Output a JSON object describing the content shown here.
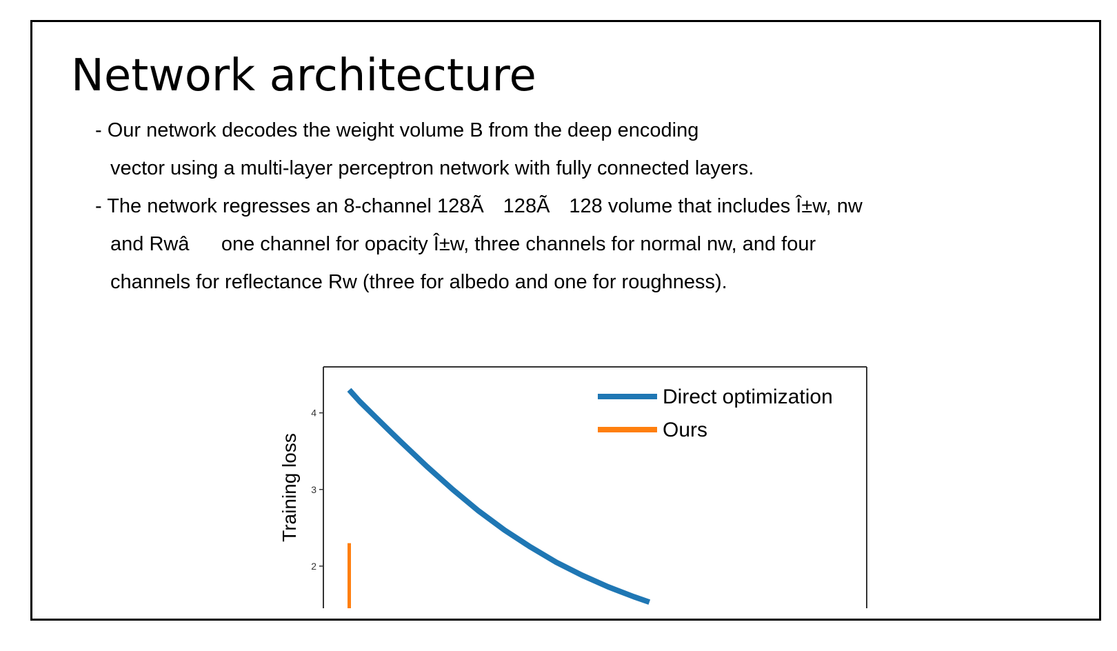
{
  "slide": {
    "title": "Network architecture",
    "lines": [
      "- Our network decodes the weight volume B from the deep encoding",
      "vector using a multi-layer perceptron network with fully connected layers.",
      "- The network regresses an 8-channel 128Ã 128Ã 128 volume that includes Î±w, nw",
      "and Rwâone channel for opacity Î±w, three channels for normal nw, and four",
      "channels for reflectance Rw (three for albedo and one for roughness)."
    ]
  },
  "chart_data": {
    "type": "line",
    "ylabel": "Training loss",
    "xlabel": "",
    "y_ticks": [
      2,
      3,
      4
    ],
    "ylim": [
      1.45,
      4.6
    ],
    "xlim": [
      -0.05,
      1.0
    ],
    "series": [
      {
        "name": "Direct optimization",
        "color": "#1f77b4",
        "x": [
          0,
          0.02,
          0.05,
          0.08,
          0.1,
          0.15,
          0.2,
          0.25,
          0.3,
          0.35,
          0.4,
          0.45,
          0.5,
          0.55,
          0.58
        ],
        "y": [
          4.3,
          4.15,
          3.95,
          3.75,
          3.62,
          3.3,
          3.0,
          2.72,
          2.47,
          2.25,
          2.05,
          1.88,
          1.73,
          1.6,
          1.53
        ]
      },
      {
        "name": "Ours",
        "color": "#ff7f0e",
        "x": [
          0,
          0
        ],
        "y": [
          2.3,
          1.45
        ]
      }
    ]
  }
}
